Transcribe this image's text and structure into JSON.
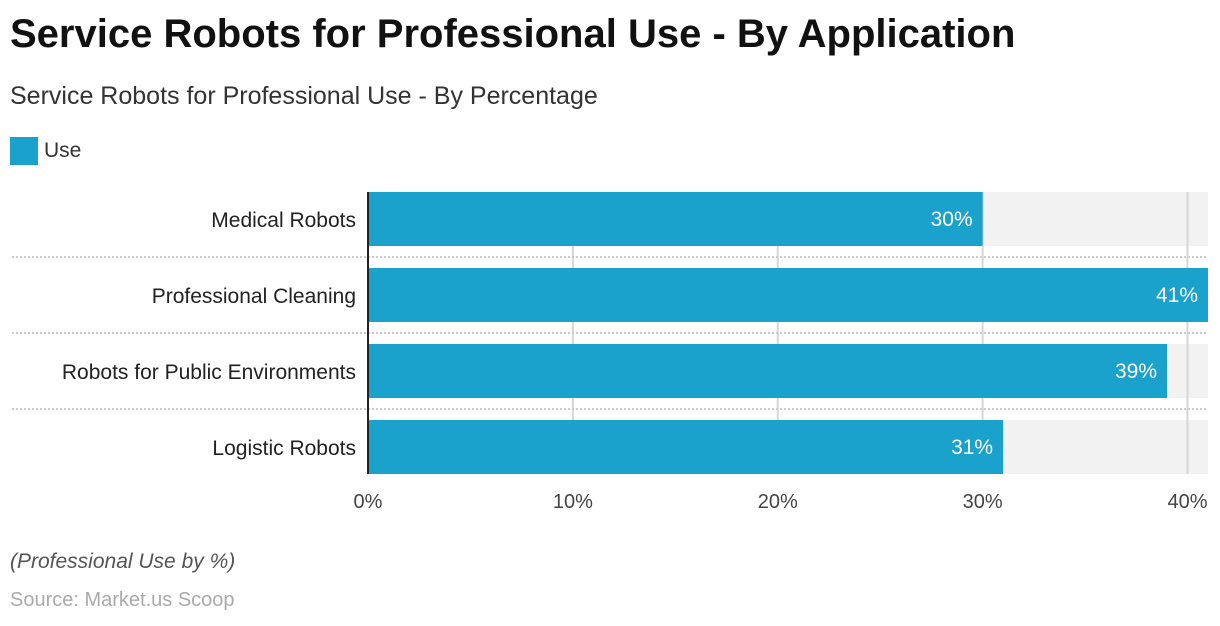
{
  "title": "Service Robots for Professional Use - By Application",
  "subtitle": "Service Robots for Professional Use - By Percentage",
  "note": "(Professional Use by %)",
  "source": "Source: Market.us Scoop",
  "colors": {
    "bar": "#1aa1cc",
    "track": "#f2f2f2"
  },
  "chart_data": {
    "type": "bar",
    "orientation": "horizontal",
    "legend": [
      "Use"
    ],
    "categories": [
      "Medical Robots",
      "Professional Cleaning",
      "Robots for Public Environments",
      "Logistic Robots"
    ],
    "values": [
      30,
      41,
      39,
      31
    ],
    "labels": [
      "30%",
      "41%",
      "39%",
      "31%"
    ],
    "xlim": [
      0,
      41
    ],
    "xticks": [
      0,
      10,
      20,
      30,
      40
    ],
    "xtick_labels": [
      "0%",
      "10%",
      "20%",
      "30%",
      "40%"
    ],
    "grid": true
  }
}
